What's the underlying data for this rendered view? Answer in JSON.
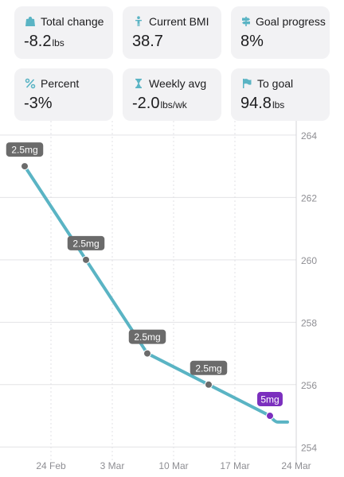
{
  "stats": [
    {
      "icon": "scale-icon",
      "label": "Total change",
      "value": "-8.2",
      "unit": "lbs"
    },
    {
      "icon": "person-icon",
      "label": "Current BMI",
      "value": "38.7",
      "unit": ""
    },
    {
      "icon": "signpost-icon",
      "label": "Goal progress",
      "value": "8%",
      "unit": ""
    },
    {
      "icon": "percent-icon",
      "label": "Percent",
      "value": "-3%",
      "unit": ""
    },
    {
      "icon": "hourglass-icon",
      "label": "Weekly avg",
      "value": "-2.0",
      "unit": "lbs/wk"
    },
    {
      "icon": "flag-icon",
      "label": "To goal",
      "value": "94.8",
      "unit": "lbs"
    }
  ],
  "colors": {
    "accent": "#5ab4c4",
    "dose_badge": "#6b6b6b",
    "dose_badge_active": "#7b2fbe",
    "point": "#6b6b6b",
    "point_active": "#7b2fbe"
  },
  "chart_data": {
    "type": "line",
    "x": [
      "2025-02-21",
      "2025-02-28",
      "2025-03-07",
      "2025-03-14",
      "2025-03-21",
      "2025-03-23"
    ],
    "y": [
      263.0,
      260.0,
      257.0,
      256.0,
      255.0,
      254.8
    ],
    "doses": [
      {
        "date": "2025-02-21",
        "label": "2.5mg",
        "active": false
      },
      {
        "date": "2025-02-28",
        "label": "2.5mg",
        "active": false
      },
      {
        "date": "2025-03-07",
        "label": "2.5mg",
        "active": false
      },
      {
        "date": "2025-03-14",
        "label": "2.5mg",
        "active": false
      },
      {
        "date": "2025-03-21",
        "label": "5mg",
        "active": true
      }
    ],
    "x_ticks": [
      {
        "date": "2025-02-24",
        "label": "24 Feb"
      },
      {
        "date": "2025-03-03",
        "label": "3 Mar"
      },
      {
        "date": "2025-03-10",
        "label": "10 Mar"
      },
      {
        "date": "2025-03-17",
        "label": "17 Mar"
      },
      {
        "date": "2025-03-24",
        "label": "24 Mar"
      }
    ],
    "y_ticks": [
      254,
      256,
      258,
      260,
      262,
      264
    ],
    "ylim": [
      253.6,
      264.2
    ],
    "xlim": [
      "2025-02-20",
      "2025-03-24"
    ],
    "grid": true
  }
}
